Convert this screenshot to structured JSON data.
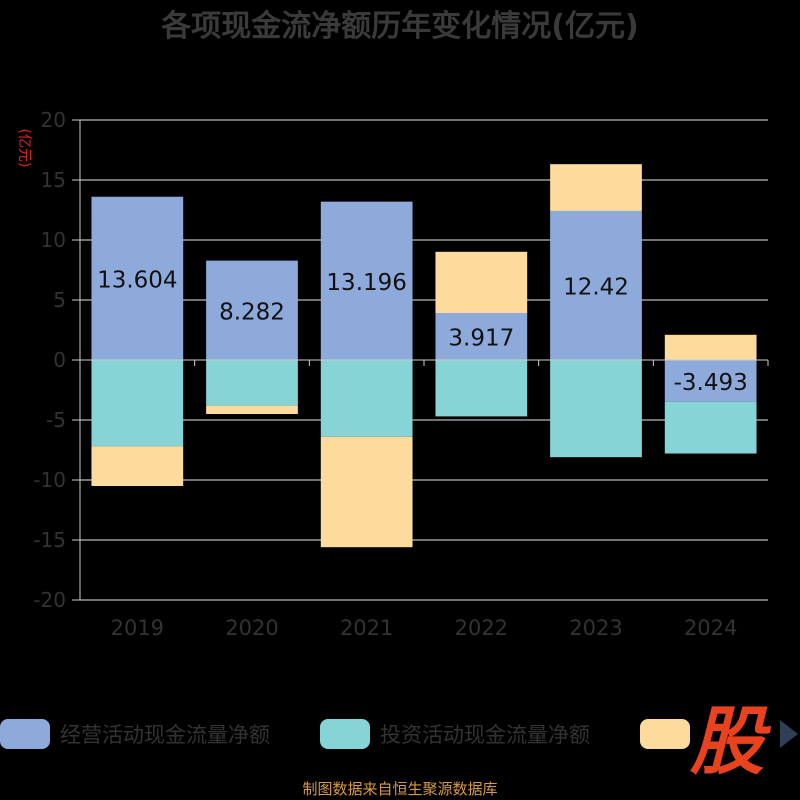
{
  "chart_data": {
    "type": "bar",
    "stacked": true,
    "title": "各项现金流净额历年变化情况(亿元)",
    "unit_label": "(亿元)",
    "categories": [
      "2019",
      "2020",
      "2021",
      "2022",
      "2023",
      "2024"
    ],
    "ylim": [
      -20,
      20
    ],
    "yticks": [
      20,
      15,
      10,
      5,
      0,
      -5,
      -10,
      -15,
      -20
    ],
    "grid": true,
    "legend_position": "bottom",
    "series": [
      {
        "name": "经营活动现金流量净额",
        "color": "#8eaadb",
        "values": [
          13.604,
          8.282,
          13.196,
          3.917,
          12.42,
          -3.493
        ]
      },
      {
        "name": "投资活动现金流量净额",
        "color": "#86d4d6",
        "values": [
          -7.2,
          -3.8,
          -6.4,
          -4.7,
          -8.1,
          -4.3
        ]
      },
      {
        "name": "",
        "color": "#fddb9c",
        "values": [
          -3.3,
          -0.7,
          -9.2,
          5.1,
          3.9,
          2.1
        ]
      }
    ],
    "data_labels": [
      "13.604",
      "8.282",
      "13.196",
      "3.917",
      "12.42",
      "-3.493"
    ]
  },
  "footer": {
    "source_text": "制图数据来自恒生聚源数据库"
  },
  "watermark": {
    "text": "股"
  }
}
